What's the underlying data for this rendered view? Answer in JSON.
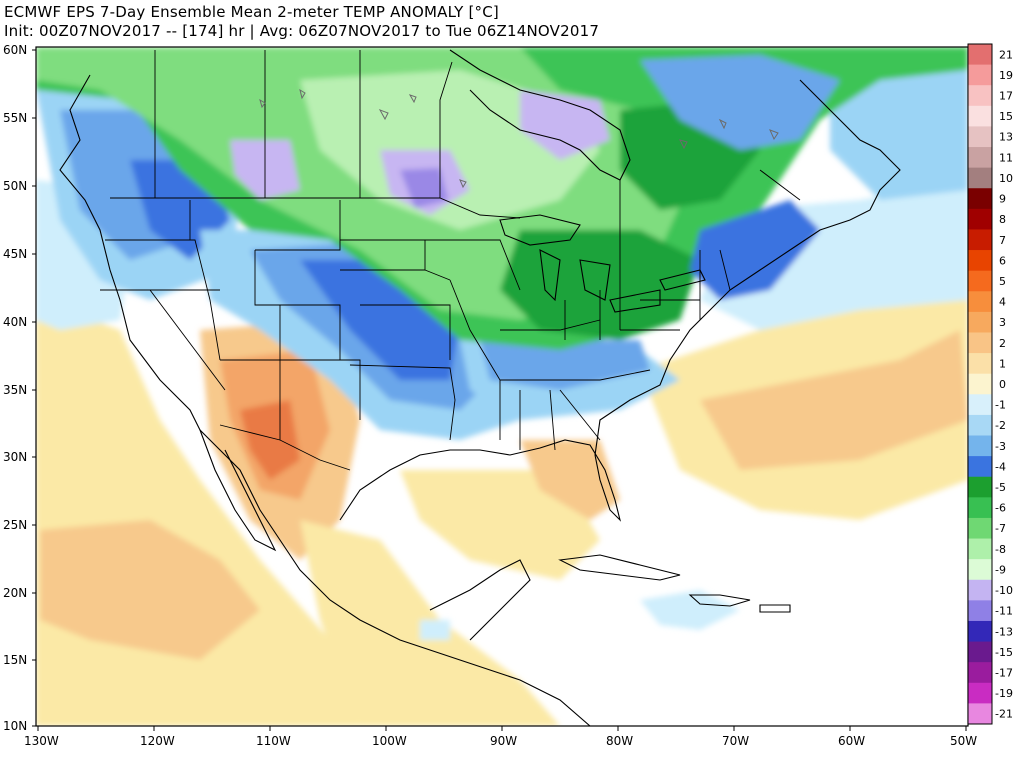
{
  "title": {
    "line1": "ECMWF EPS 7-Day Ensemble Mean 2-meter TEMP ANOMALY [°C]",
    "line2": "Init: 00Z07NOV2017 -- [174] hr | Avg: 06Z07NOV2017 to Tue 06Z14NOV2017"
  },
  "map": {
    "lat_labels": [
      "60N",
      "55N",
      "50N",
      "45N",
      "40N",
      "35N",
      "30N",
      "25N",
      "20N",
      "15N",
      "10N"
    ],
    "lon_labels": [
      "130W",
      "120W",
      "110W",
      "100W",
      "90W",
      "80W",
      "70W",
      "60W",
      "50W"
    ],
    "colors": {
      "warm": "#fbe9a6",
      "orange_light": "#f7c98c",
      "orange": "#f3a567",
      "orange_dark": "#e97a45",
      "cool_light": "#cfeefc",
      "cool": "#9bd4f5",
      "blue": "#6aa6ea",
      "blue_dark": "#3b73e0",
      "green_dark": "#1aa33a",
      "green": "#3cc457",
      "green_light": "#7fdd7f",
      "green_pale": "#b9f0b2",
      "lavender": "#c7b6f2",
      "purple": "#9a88e6",
      "ocean_neutral": "#ffffff",
      "border": "#000000"
    }
  },
  "colorbar": {
    "labels": [
      "21",
      "19",
      "17",
      "15",
      "13",
      "11",
      "10",
      "9",
      "8",
      "7",
      "6",
      "5",
      "4",
      "3",
      "2",
      "1",
      "0",
      "-1",
      "-2",
      "-3",
      "-4",
      "-5",
      "-6",
      "-7",
      "-8",
      "-9",
      "-10",
      "-11",
      "-13",
      "-15",
      "-17",
      "-19",
      "-21"
    ],
    "colors": [
      "#e36f6f",
      "#f59b9b",
      "#f8c2c2",
      "#fae0e0",
      "#e6c2c2",
      "#c9a2a2",
      "#a37f7f",
      "#7a0000",
      "#a00000",
      "#c81c00",
      "#e84400",
      "#f56a1e",
      "#f78e3c",
      "#f7a95e",
      "#f9c486",
      "#fbe0a8",
      "#fcf4cf",
      "#d8f0fb",
      "#a8d8f5",
      "#74b4ec",
      "#3a74e0",
      "#1c9f2f",
      "#38c052",
      "#6fd873",
      "#aef0aa",
      "#dcfbd6",
      "#c4b4f2",
      "#8f80e6",
      "#3328b8",
      "#6a1a8e",
      "#9a1c9e",
      "#c92cc2",
      "#e887e0"
    ]
  }
}
